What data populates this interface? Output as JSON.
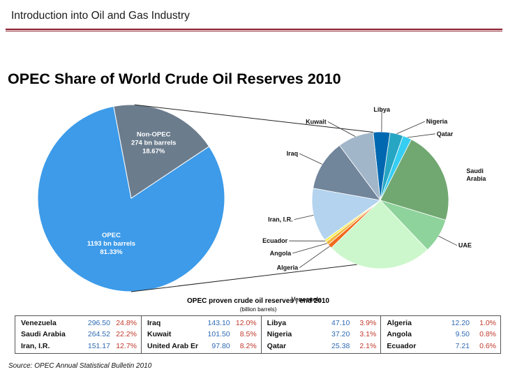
{
  "header": {
    "title": "Introduction into Oil and Gas Industry"
  },
  "colors": {
    "accent_rule": "#8b1c2c",
    "value_blue": "#2e6ab3",
    "pct_red": "#c0392b"
  },
  "chart_data": [
    {
      "type": "pie",
      "title": "OPEC Share of World Crude Oil Reserves 2010",
      "slices": [
        {
          "name": "OPEC",
          "value": 1193,
          "unit_label": "1193 bn barrels",
          "pct_label": "81.33%",
          "color": "#3d9be9"
        },
        {
          "name": "Non-OPEC",
          "value": 274,
          "unit_label": "274 bn barrels",
          "pct_label": "18.67%",
          "color": "#6b7c8d"
        }
      ]
    },
    {
      "type": "pie",
      "title": "",
      "slices": [
        {
          "name": "Libya",
          "value": 47.1,
          "color": "#0068b0"
        },
        {
          "name": "Nigeria",
          "value": 37.2,
          "color": "#27a6c4"
        },
        {
          "name": "Qatar",
          "value": 25.38,
          "color": "#36cdf2"
        },
        {
          "name": "Saudi Arabia",
          "value": 264.52,
          "color": "#71a871"
        },
        {
          "name": "UAE",
          "value": 97.8,
          "color": "#8ed39b"
        },
        {
          "name": "Venezuela",
          "value": 296.5,
          "color": "#ccf7cc"
        },
        {
          "name": "Algeria",
          "value": 12.2,
          "color": "#f06a1c"
        },
        {
          "name": "Angola",
          "value": 9.5,
          "color": "#f3b43c"
        },
        {
          "name": "Ecuador",
          "value": 7.21,
          "color": "#f6ef5a"
        },
        {
          "name": "Iran, I.R.",
          "value": 151.17,
          "color": "#b3d3ee"
        },
        {
          "name": "Iraq",
          "value": 143.1,
          "color": "#71859b"
        },
        {
          "name": "Kuwait",
          "value": 101.5,
          "color": "#a1b6c9"
        }
      ],
      "label_texts": {
        "Libya": "Libya",
        "Nigeria": "Nigeria",
        "Qatar": "Qatar",
        "Saudi Arabia": [
          "Saudi",
          "Arabia"
        ],
        "UAE": "UAE",
        "Venezuela": "Venezuela",
        "Algeria": "Algeria",
        "Angola": "Angola",
        "Ecuador": "Ecuador",
        "Iran, I.R.": "Iran, I.R.",
        "Iraq": "Iraq",
        "Kuwait": "Kuwait"
      }
    }
  ],
  "table": {
    "title": "OPEC proven crude oil reserves , end 2010",
    "subtitle": "(billion barrels)",
    "columns": [
      [
        {
          "country": "Venezuela",
          "value": "296.50",
          "pct": "24.8%"
        },
        {
          "country": "Saudi Arabia",
          "value": "264.52",
          "pct": "22.2%"
        },
        {
          "country": "Iran, I.R.",
          "value": "151.17",
          "pct": "12.7%"
        }
      ],
      [
        {
          "country": "Iraq",
          "value": "143.10",
          "pct": "12.0%"
        },
        {
          "country": "Kuwait",
          "value": "101.50",
          "pct": "8.5%"
        },
        {
          "country": "United Arab Emirates",
          "value": "97.80",
          "pct": "8.2%"
        }
      ],
      [
        {
          "country": "Libya",
          "value": "47.10",
          "pct": "3.9%"
        },
        {
          "country": "Nigeria",
          "value": "37.20",
          "pct": "3.1%"
        },
        {
          "country": "Qatar",
          "value": "25.38",
          "pct": "2.1%"
        }
      ],
      [
        {
          "country": "Algeria",
          "value": "12.20",
          "pct": "1.0%"
        },
        {
          "country": "Angola",
          "value": "9.50",
          "pct": "0.8%"
        },
        {
          "country": "Ecuador",
          "value": "7.21",
          "pct": "0.6%"
        }
      ]
    ]
  },
  "source": "Source: OPEC Annual Statistical Bulletin 2010"
}
